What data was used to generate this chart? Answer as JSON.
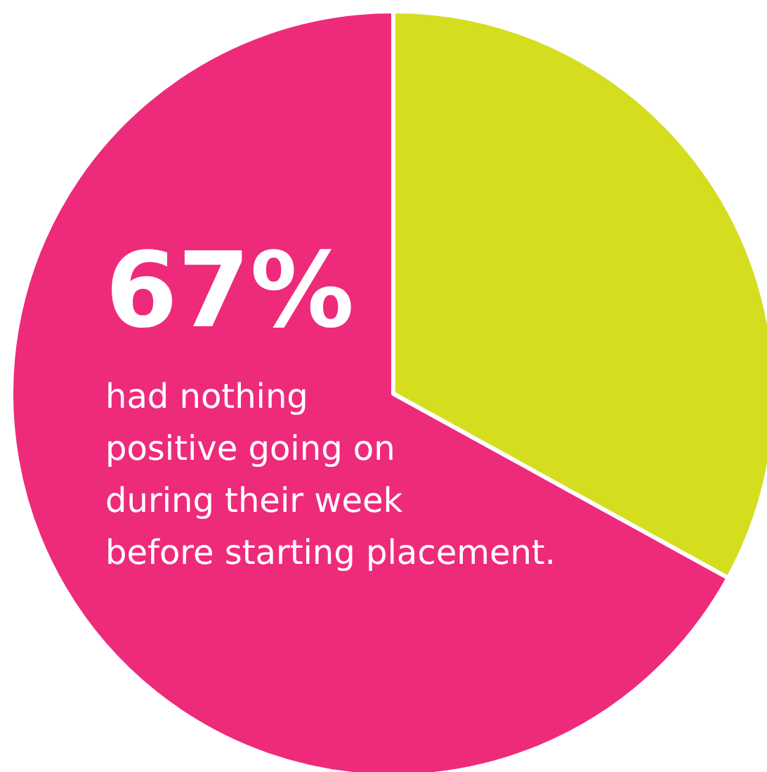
{
  "chart_data": {
    "type": "pie",
    "categories": [
      null,
      null
    ],
    "values": [
      33,
      67
    ],
    "colors": [
      "#d4de1f",
      "#ee2a7b"
    ],
    "value_labels": [
      null,
      "67%"
    ],
    "annotations": [
      "had nothing\npositive going on\nduring their week\nbefore starting placement."
    ]
  }
}
